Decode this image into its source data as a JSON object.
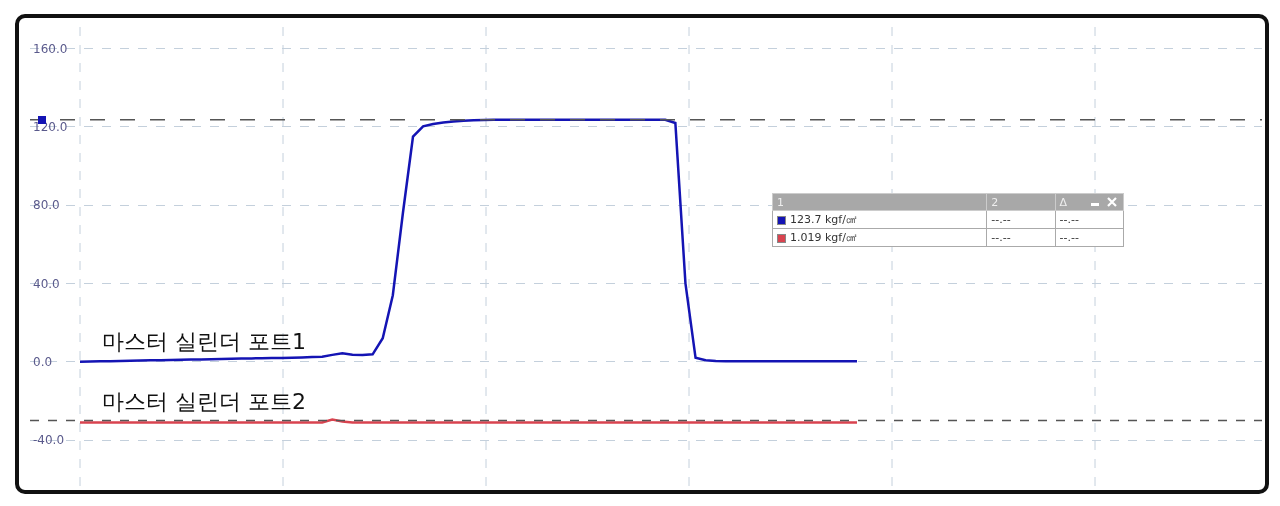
{
  "chart_data": {
    "type": "line",
    "categories": [
      null,
      null,
      null,
      null,
      null,
      null,
      null,
      null,
      null,
      null,
      null,
      null,
      null,
      null,
      null,
      null,
      null,
      null,
      null,
      null,
      null,
      null,
      null,
      null,
      null,
      null,
      null,
      null,
      null,
      null,
      null,
      null,
      null,
      null,
      null,
      null,
      null,
      null,
      null,
      null,
      null,
      null,
      null,
      null,
      null,
      null,
      null,
      null,
      null,
      null,
      null,
      null,
      null,
      null,
      null,
      null,
      null,
      null,
      null,
      null,
      null,
      null,
      null,
      null,
      null,
      null,
      null,
      null,
      null,
      null,
      null,
      null,
      null,
      null,
      null,
      null,
      null,
      null
    ],
    "series": [
      {
        "name": "마스터 실린더 포트1",
        "color": "#1414b4",
        "values": [
          0,
          0.1,
          0.2,
          0.3,
          0.4,
          0.5,
          0.6,
          0.7,
          0.8,
          0.9,
          1.0,
          1.1,
          1.2,
          1.3,
          1.4,
          1.5,
          1.6,
          1.7,
          1.8,
          1.9,
          1.9,
          2.0,
          2.2,
          2.4,
          2.6,
          3.5,
          4.3,
          3.6,
          3.5,
          3.8,
          12,
          34,
          76,
          115,
          120.3,
          121.5,
          122.3,
          122.8,
          123.1,
          123.4,
          123.5,
          123.6,
          123.6,
          123.6,
          123.6,
          123.6,
          123.6,
          123.6,
          123.6,
          123.6,
          123.6,
          123.6,
          123.6,
          123.6,
          123.6,
          123.6,
          123.6,
          123.6,
          123.6,
          122,
          40,
          2,
          0.8,
          0.4,
          0.2,
          0.3,
          0.3,
          0.3,
          0.3,
          0.3,
          0.3,
          0.3,
          0.3,
          0.3,
          0.3,
          0.3,
          0.3,
          0.3
        ]
      },
      {
        "name": "마스터 실린더 포트2",
        "color": "#d9434f",
        "values": [
          -31,
          -31,
          -31,
          -31,
          -31,
          -31,
          -31,
          -31,
          -31,
          -31,
          -31,
          -31,
          -31,
          -31,
          -31,
          -31,
          -31,
          -31,
          -31,
          -31,
          -31,
          -31,
          -31,
          -31,
          -31,
          -29.5,
          -30.5,
          -31,
          -31,
          -31,
          -31,
          -31,
          -31,
          -31,
          -31,
          -31,
          -31,
          -31,
          -31,
          -31,
          -31,
          -31,
          -31,
          -31,
          -31,
          -31,
          -31,
          -31,
          -31,
          -31,
          -31,
          -31,
          -31,
          -31,
          -31,
          -31,
          -31,
          -31,
          -31,
          -31,
          -31,
          -31,
          -31,
          -31,
          -31,
          -31,
          -31,
          -31,
          -31,
          -31,
          -31,
          -31,
          -31,
          -31,
          -31,
          -31,
          -31,
          -31
        ]
      }
    ],
    "ylim": [
      -63.5,
      173.6
    ],
    "yticks": [
      {
        "value": -40,
        "label": "-40.0"
      },
      {
        "value": 0,
        "label": "0.0"
      },
      {
        "value": 40,
        "label": "40.0"
      },
      {
        "value": 80,
        "label": "80.0"
      },
      {
        "value": 120,
        "label": "120.0"
      },
      {
        "value": 160,
        "label": "160.0"
      }
    ],
    "tick_labels": "y",
    "grid": true,
    "line_style": "solid",
    "ref_lines": [
      {
        "axis": "y",
        "value": 123.7,
        "color": "#555555",
        "line_style": "dashed"
      },
      {
        "axis": "y",
        "value": -30,
        "color": "#555555",
        "line_style": "dotted"
      }
    ],
    "annotations": [
      "1",
      "2",
      "Δ",
      "123.7 kgf/㎠",
      "--.--",
      "--.--",
      "1.019 kgf/㎠",
      "--.--",
      "--.--"
    ]
  }
}
